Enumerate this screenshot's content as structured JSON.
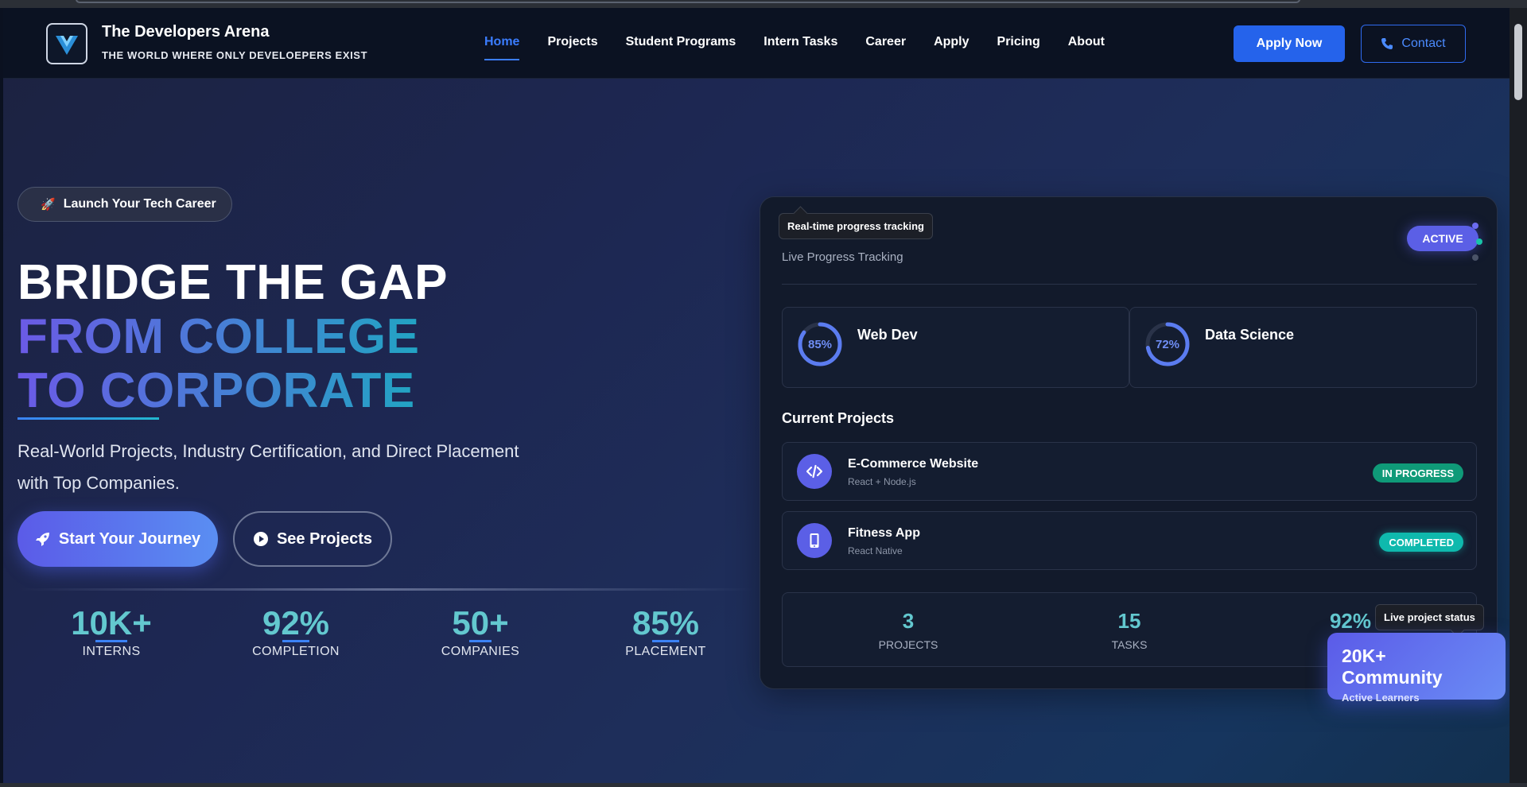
{
  "brand": {
    "title": "The Developers Arena",
    "tagline": "THE WORLD WHERE ONLY DEVELOEPERS EXIST"
  },
  "nav": {
    "items": [
      {
        "label": "Home",
        "active": true
      },
      {
        "label": "Projects"
      },
      {
        "label": "Student Programs"
      },
      {
        "label": "Intern Tasks"
      },
      {
        "label": "Career"
      },
      {
        "label": "Apply"
      },
      {
        "label": "Pricing"
      },
      {
        "label": "About"
      }
    ],
    "apply_label": "Apply Now",
    "contact_label": "Contact"
  },
  "hero": {
    "pill": "Launch Your Tech Career",
    "line1": "BRIDGE THE GAP",
    "line2": "FROM COLLEGE",
    "line3": "TO CORPORATE",
    "lead": "Real-World Projects, Industry Certification, and Direct Placement with Top Companies.",
    "cta_primary": "Start Your Journey",
    "cta_secondary": "See Projects",
    "stats": [
      {
        "value": "10K+",
        "label": "INTERNS"
      },
      {
        "value": "92%",
        "label": "COMPLETION"
      },
      {
        "value": "50+",
        "label": "COMPANIES"
      },
      {
        "value": "85%",
        "label": "PLACEMENT"
      }
    ]
  },
  "dashboard": {
    "tooltip_top": "Real-time progress tracking",
    "subtitle": "Live Progress Tracking",
    "badge": "ACTIVE",
    "tracks": [
      {
        "name": "Web Dev",
        "percent_label": "85%",
        "percent": 85
      },
      {
        "name": "Data Science",
        "percent_label": "72%",
        "percent": 72
      }
    ],
    "projects_title": "Current Projects",
    "projects": [
      {
        "name": "E-Commerce Website",
        "tech": "React + Node.js",
        "status": "IN PROGRESS",
        "icon": "code-icon"
      },
      {
        "name": "Fitness App",
        "tech": "React Native",
        "status": "COMPLETED",
        "icon": "mobile-icon"
      }
    ],
    "summary": [
      {
        "value": "3",
        "label": "PROJECTS"
      },
      {
        "value": "15",
        "label": "TASKS"
      },
      {
        "value": "92%",
        "label": ""
      }
    ],
    "tooltip_bottom": "Live project status",
    "community_title": "20K+ Community",
    "community_sub": "Active Learners"
  },
  "colors": {
    "accent": "#2563eb",
    "primary_gradient_start": "#5b5be8",
    "teal": "#63c8cf",
    "in_progress": "#0f9a78",
    "completed": "#0fb9ad"
  }
}
